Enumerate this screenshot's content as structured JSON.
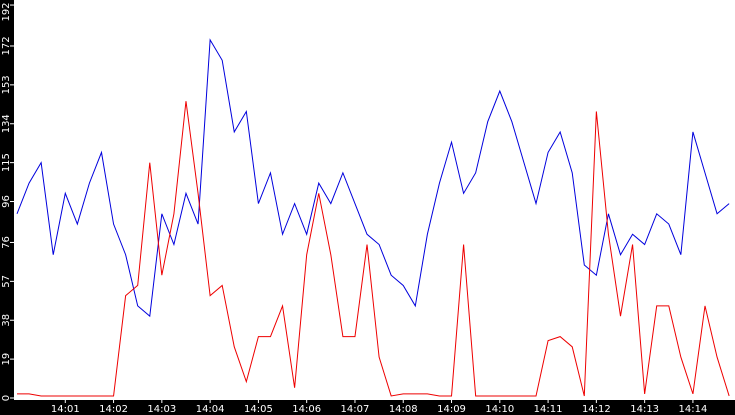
{
  "chart_data": {
    "type": "line",
    "categories": [
      null,
      null,
      null,
      null,
      "14:01",
      null,
      null,
      null,
      "14:02",
      null,
      null,
      null,
      "14:03",
      null,
      null,
      null,
      "14:04",
      null,
      null,
      null,
      "14:05",
      null,
      null,
      null,
      "14:06",
      null,
      null,
      null,
      "14:07",
      null,
      null,
      null,
      "14:08",
      null,
      null,
      null,
      "14:09",
      null,
      null,
      null,
      "14:10",
      null,
      null,
      null,
      "14:11",
      null,
      null,
      null,
      "14:12",
      null,
      null,
      null,
      "14:13",
      null,
      null,
      null,
      "14:14",
      null,
      null,
      null
    ],
    "series": [
      {
        "color": "#0000dd",
        "values": [
          90,
          105,
          115,
          70,
          100,
          85,
          105,
          120,
          85,
          70,
          45,
          40,
          90,
          75,
          100,
          85,
          175,
          165,
          130,
          140,
          95,
          110,
          80,
          95,
          80,
          105,
          95,
          110,
          95,
          80,
          75,
          60,
          55,
          45,
          80,
          105,
          125,
          100,
          110,
          135,
          150,
          135,
          115,
          95,
          120,
          130,
          110,
          65,
          60,
          90,
          70,
          80,
          75,
          90,
          85,
          70,
          130,
          110,
          90,
          95
        ]
      },
      {
        "color": "#ee0000",
        "values": [
          2,
          2,
          1,
          1,
          1,
          1,
          1,
          1,
          1,
          50,
          55,
          115,
          60,
          90,
          145,
          100,
          50,
          55,
          25,
          8,
          30,
          30,
          45,
          5,
          70,
          100,
          70,
          30,
          30,
          75,
          20,
          1,
          2,
          2,
          2,
          1,
          1,
          75,
          1,
          1,
          1,
          1,
          1,
          1,
          28,
          30,
          25,
          1,
          140,
          80,
          40,
          75,
          2,
          45,
          45,
          20,
          2,
          45,
          20,
          1
        ]
      }
    ],
    "ylim": [
      0,
      193
    ],
    "yticks": [
      0,
      19,
      38,
      57,
      76,
      96,
      115,
      134,
      153,
      172,
      192
    ]
  }
}
